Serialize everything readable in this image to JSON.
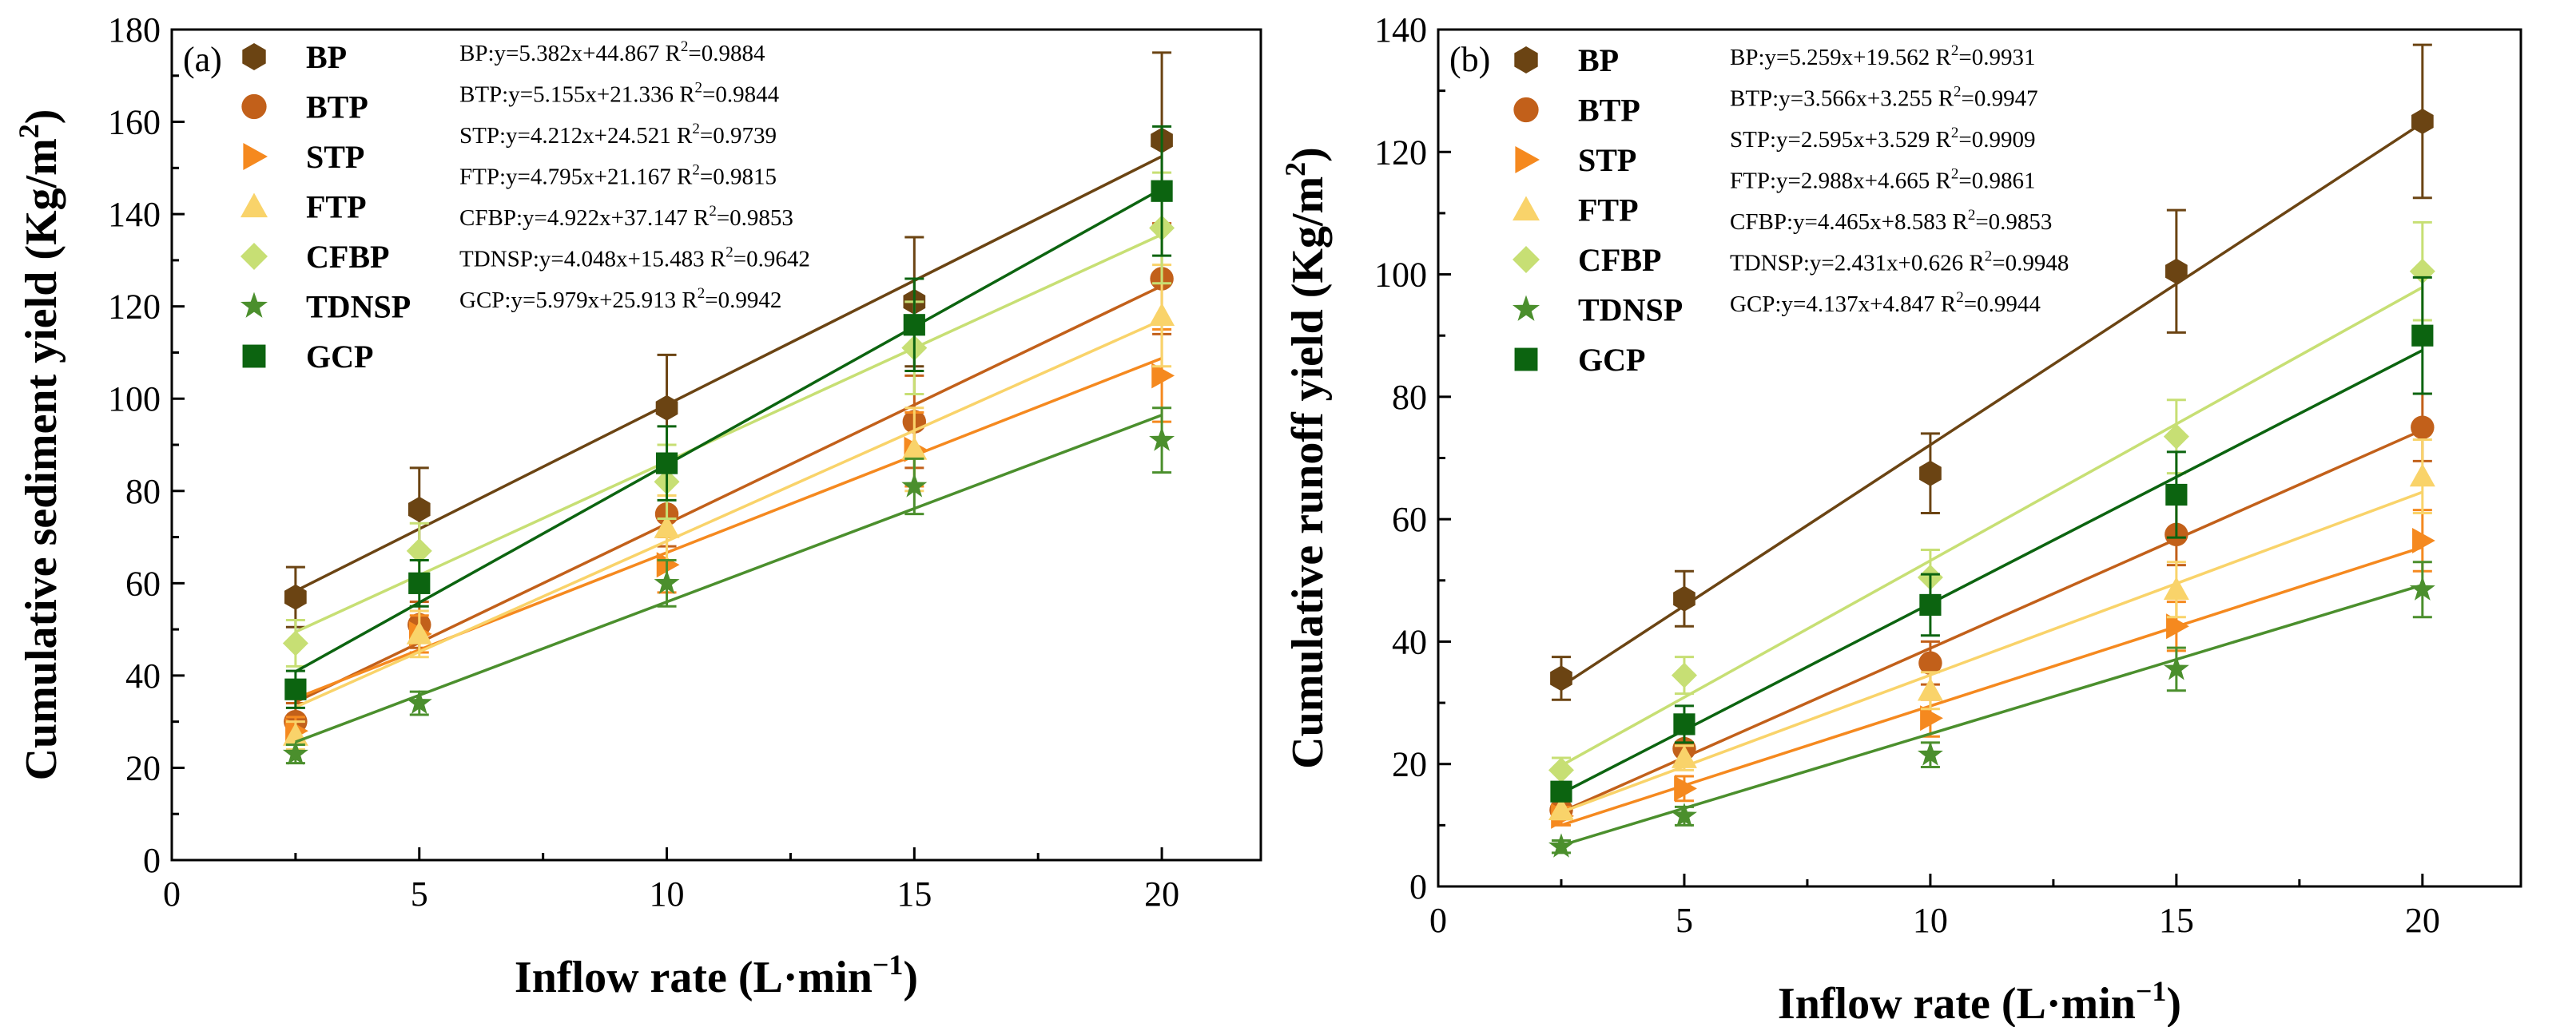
{
  "chart_data": [
    {
      "type": "scatter",
      "panel_label": "(a)",
      "xlabel": "Inflow rate (L·min",
      "xlabel_sup": "−1",
      "xlabel_end": ")",
      "ylabel": "Cumulative sediment yield (Kg/m",
      "ylabel_sup": "2",
      "ylabel_end": ")",
      "xlim": [
        0,
        22
      ],
      "ylim": [
        0,
        180
      ],
      "xticks": [
        0,
        5,
        10,
        15,
        20
      ],
      "yticks": [
        0,
        20,
        40,
        60,
        80,
        100,
        120,
        140,
        160,
        180
      ],
      "x": [
        2.5,
        5,
        10,
        15,
        20
      ],
      "series": [
        {
          "name": "BP",
          "marker": "hexagon",
          "color": "#6b4413",
          "values": [
            57,
            76,
            98,
            121,
            156
          ],
          "errors": [
            6.5,
            9,
            11.5,
            14,
            19
          ],
          "slope": 5.382,
          "intercept": 44.867,
          "equation": "BP:y=5.382x+44.867 R",
          "r2": "=0.9884"
        },
        {
          "name": "BTP",
          "marker": "circle",
          "color": "#c2601a",
          "values": [
            30,
            51,
            75,
            95,
            126
          ],
          "errors": [
            4,
            5,
            7,
            10,
            12
          ],
          "slope": 5.155,
          "intercept": 21.336,
          "equation": "BTP:y=5.155x+21.336 R",
          "r2": "=0.9844"
        },
        {
          "name": "STP",
          "marker": "triangle-right",
          "color": "#f5891f",
          "values": [
            28,
            49,
            64,
            89,
            105
          ],
          "errors": [
            3,
            4,
            6,
            8,
            10
          ],
          "slope": 4.212,
          "intercept": 24.521,
          "equation": "STP:y=4.212x+24.521 R",
          "r2": "=0.9739"
        },
        {
          "name": "FTP",
          "marker": "triangle-up",
          "color": "#f9d36a",
          "values": [
            27,
            49,
            72,
            89,
            118
          ],
          "errors": [
            3,
            5,
            7,
            9,
            11
          ],
          "slope": 4.795,
          "intercept": 21.167,
          "equation": "FTP:y=4.795x+21.167 R",
          "r2": "=0.9815"
        },
        {
          "name": "CFBP",
          "marker": "diamond",
          "color": "#c7df74",
          "values": [
            47,
            67,
            82,
            111,
            137
          ],
          "errors": [
            5,
            6,
            8,
            10,
            12
          ],
          "slope": 4.922,
          "intercept": 37.147,
          "equation": "CFBP:y=4.922x+37.147 R",
          "r2": "=0.9853"
        },
        {
          "name": "TDNSP",
          "marker": "star",
          "color": "#4b8f2d",
          "values": [
            23,
            34,
            60,
            81,
            91
          ],
          "errors": [
            2,
            2.5,
            5,
            6,
            7
          ],
          "slope": 4.048,
          "intercept": 15.483,
          "equation": "TDNSP:y=4.048x+15.483 R",
          "r2": "=0.9642"
        },
        {
          "name": "GCP",
          "marker": "square",
          "color": "#0c6410",
          "values": [
            37,
            60,
            86,
            116,
            145
          ],
          "errors": [
            4,
            5,
            8,
            10,
            14
          ],
          "slope": 5.979,
          "intercept": 25.913,
          "equation": "GCP:y=5.979x+25.913 R",
          "r2": "=0.9942"
        }
      ]
    },
    {
      "type": "scatter",
      "panel_label": "(b)",
      "xlabel": "Inflow rate (L·min",
      "xlabel_sup": "−1",
      "xlabel_end": ")",
      "ylabel": "Cumulative runoff yield (Kg/m",
      "ylabel_sup": "2",
      "ylabel_end": ")",
      "xlim": [
        0,
        22
      ],
      "ylim": [
        0,
        140
      ],
      "xticks": [
        0,
        5,
        10,
        15,
        20
      ],
      "yticks": [
        0,
        20,
        40,
        60,
        80,
        100,
        120,
        140
      ],
      "x": [
        2.5,
        5,
        10,
        15,
        20
      ],
      "series": [
        {
          "name": "BP",
          "marker": "hexagon",
          "color": "#6b4413",
          "values": [
            34,
            47,
            67.5,
            100.5,
            125
          ],
          "errors": [
            3.5,
            4.5,
            6.5,
            10,
            12.5
          ],
          "slope": 5.259,
          "intercept": 19.562,
          "equation": "BP:y=5.259x+19.562 R",
          "r2": "=0.9931"
        },
        {
          "name": "BTP",
          "marker": "circle",
          "color": "#c2601a",
          "values": [
            12.5,
            22.5,
            36.5,
            57.5,
            75
          ],
          "errors": [
            1.5,
            2.5,
            3.5,
            5,
            5.5
          ],
          "slope": 3.566,
          "intercept": 3.255,
          "equation": "BTP:y=3.566x+3.255 R",
          "r2": "=0.9947"
        },
        {
          "name": "STP",
          "marker": "triangle-right",
          "color": "#f5891f",
          "values": [
            11.5,
            16,
            27.5,
            42.5,
            56.5
          ],
          "errors": [
            1.5,
            2,
            3,
            4,
            5
          ],
          "slope": 2.595,
          "intercept": 3.529,
          "equation": "STP:y=2.595x+3.529 R",
          "r2": "=0.9909"
        },
        {
          "name": "FTP",
          "marker": "triangle-up",
          "color": "#f9d36a",
          "values": [
            12.5,
            21,
            32,
            48.5,
            67
          ],
          "errors": [
            1.5,
            2,
            3,
            4.5,
            6
          ],
          "slope": 2.988,
          "intercept": 4.665,
          "equation": "FTP:y=2.988x+4.665 R",
          "r2": "=0.9861"
        },
        {
          "name": "CFBP",
          "marker": "diamond",
          "color": "#c7df74",
          "values": [
            19,
            34.5,
            50.5,
            73.5,
            100.5
          ],
          "errors": [
            2,
            3,
            4.5,
            6,
            8
          ],
          "slope": 4.465,
          "intercept": 8.583,
          "equation": "CFBP:y=4.465x+8.583 R",
          "r2": "=0.9853"
        },
        {
          "name": "TDNSP",
          "marker": "star",
          "color": "#4b8f2d",
          "values": [
            6.5,
            11.5,
            21.5,
            35.5,
            48.5
          ],
          "errors": [
            1,
            1.5,
            2,
            3.5,
            4.5
          ],
          "slope": 2.431,
          "intercept": 0.626,
          "equation": "TDNSP:y=2.431x+0.626 R",
          "r2": "=0.9948"
        },
        {
          "name": "GCP",
          "marker": "square",
          "color": "#0c6410",
          "values": [
            15.5,
            26.5,
            46,
            64,
            90
          ],
          "errors": [
            1.5,
            3,
            5,
            7,
            9.5
          ],
          "slope": 4.137,
          "intercept": 4.847,
          "equation": "GCP:y=4.137x+4.847 R",
          "r2": "=0.9944"
        }
      ]
    }
  ]
}
